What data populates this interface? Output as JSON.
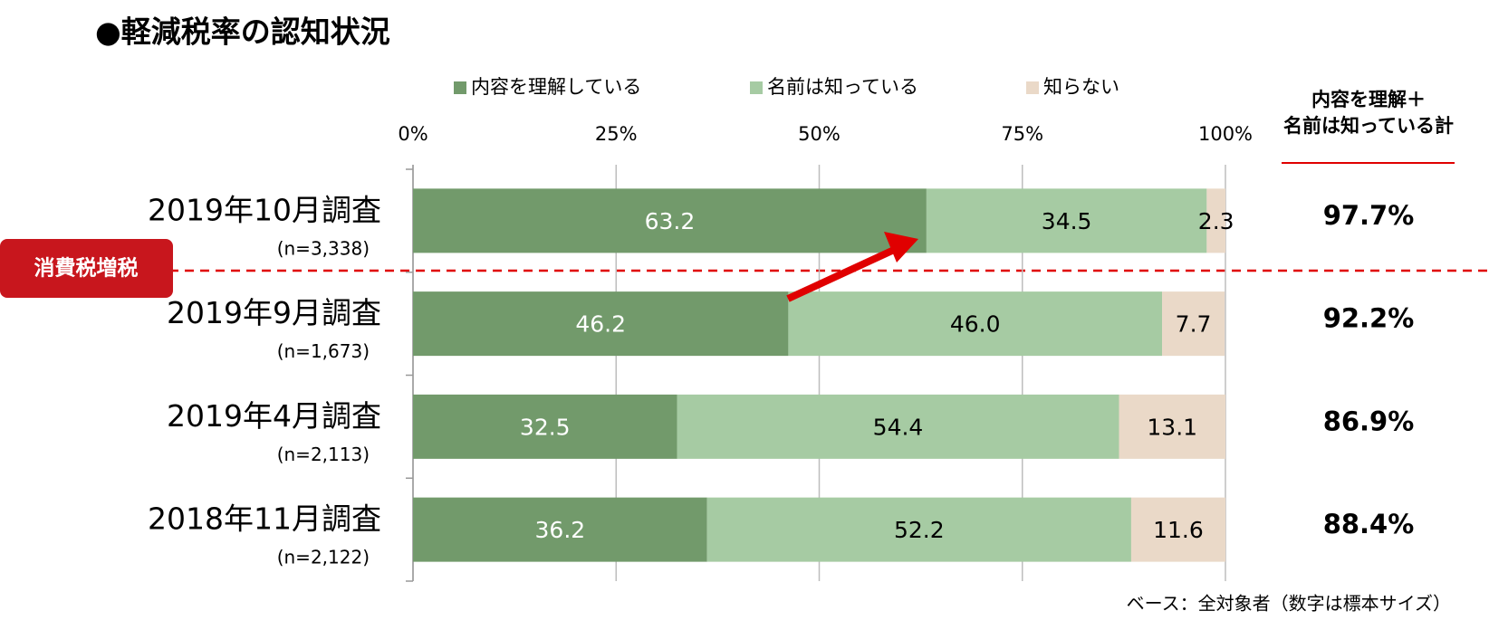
{
  "chart_data": {
    "type": "stacked_barh",
    "title": "●軽減税率の認知状況",
    "categories": [
      "2019年10月調査",
      "2019年9月調査",
      "2019年4月調査",
      "2018年11月調査"
    ],
    "sample_sizes": [
      "(n=3,338)",
      "(n=1,673)",
      "(n=2,113)",
      "(n=2,122)"
    ],
    "series": [
      {
        "name": "内容を理解している",
        "color": "#729a6b",
        "label_color": "#ffffff",
        "values": [
          63.2,
          46.2,
          32.5,
          36.2
        ],
        "value_labels": [
          "63.2",
          "46.2",
          "32.5",
          "36.2"
        ]
      },
      {
        "name": "名前は知っている",
        "color": "#a6cba3",
        "label_color": "#000000",
        "values": [
          34.5,
          46.0,
          54.4,
          52.2
        ],
        "value_labels": [
          "34.5",
          "46.0",
          "54.4",
          "52.2"
        ]
      },
      {
        "name": "知らない",
        "color": "#ead9c8",
        "label_color": "#000000",
        "values": [
          2.3,
          7.7,
          13.1,
          11.6
        ],
        "value_labels": [
          "2.3",
          "7.7",
          "13.1",
          "11.6"
        ]
      }
    ],
    "xlim": [
      0,
      100
    ],
    "xticks": [
      {
        "value": 0,
        "label": "0%"
      },
      {
        "value": 25,
        "label": "25%"
      },
      {
        "value": 50,
        "label": "50%"
      },
      {
        "value": 75,
        "label": "75%"
      },
      {
        "value": 100,
        "label": "100%"
      }
    ],
    "grid": true,
    "totals": {
      "title_lines": [
        "内容を理解＋",
        "名前は知っている計"
      ],
      "values": [
        97.7,
        92.2,
        86.9,
        88.4
      ],
      "value_labels": [
        "97.7%",
        "92.2%",
        "86.9%",
        "88.4%"
      ]
    },
    "annotation": "消費税増税",
    "footnote": "ベース：全対象者（数字は標本サイズ）"
  }
}
